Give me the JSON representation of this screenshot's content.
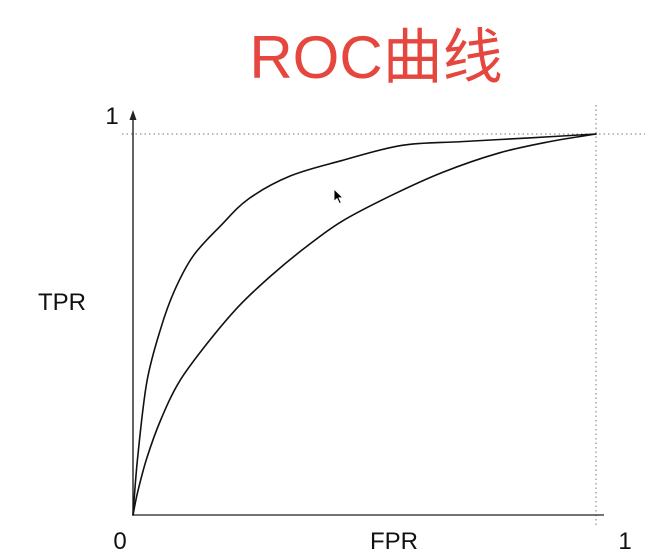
{
  "chart_data": {
    "type": "line",
    "title": "ROC曲线",
    "xlabel": "FPR",
    "ylabel": "TPR",
    "x_ticks": [
      "0",
      "1"
    ],
    "y_ticks": [
      "1"
    ],
    "xlim": [
      0,
      1
    ],
    "ylim": [
      0,
      1
    ],
    "grid": false,
    "legend": "none",
    "reference_lines": [
      {
        "axis": "y",
        "value": 1,
        "style": "dotted"
      },
      {
        "axis": "x",
        "value": 1,
        "style": "dotted"
      }
    ],
    "series": [
      {
        "x": [
          0,
          0.01,
          0.03,
          0.06,
          0.09,
          0.13,
          0.19,
          0.25,
          0.34,
          0.45,
          0.58,
          0.71,
          0.86,
          1
        ],
        "y": [
          0,
          0.15,
          0.35,
          0.49,
          0.59,
          0.68,
          0.76,
          0.83,
          0.89,
          0.93,
          0.97,
          0.98,
          0.99,
          1
        ]
      },
      {
        "x": [
          0,
          0.01,
          0.03,
          0.06,
          0.1,
          0.16,
          0.23,
          0.3,
          0.37,
          0.45,
          0.56,
          0.67,
          0.79,
          0.9,
          1
        ],
        "y": [
          0,
          0.06,
          0.15,
          0.25,
          0.35,
          0.45,
          0.55,
          0.63,
          0.7,
          0.77,
          0.84,
          0.9,
          0.95,
          0.98,
          1
        ]
      }
    ]
  },
  "colors": {
    "title": "#e5463e",
    "curve": "#111111",
    "axis": "#222222",
    "reference_line": "#777777"
  },
  "cursor": {
    "icon": "mouse-pointer-icon"
  }
}
